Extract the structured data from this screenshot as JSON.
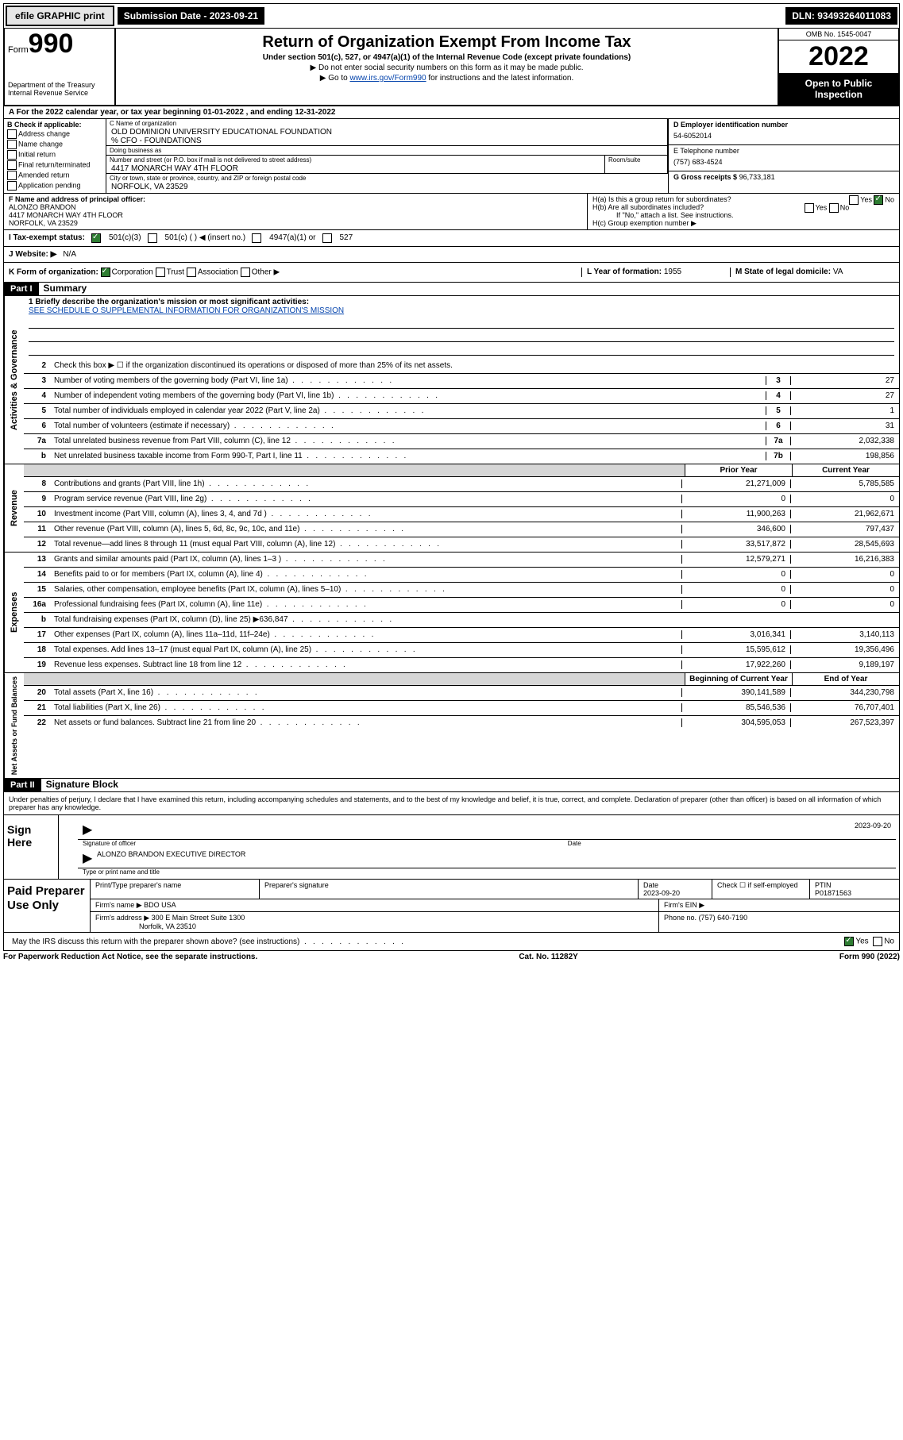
{
  "topbar": {
    "efile": "efile GRAPHIC print",
    "submission": "Submission Date - 2023-09-21",
    "dln": "DLN: 93493264011083"
  },
  "header": {
    "form_small": "Form",
    "form_big": "990",
    "title": "Return of Organization Exempt From Income Tax",
    "sub": "Under section 501(c), 527, or 4947(a)(1) of the Internal Revenue Code (except private foundations)",
    "note1": "▶ Do not enter social security numbers on this form as it may be made public.",
    "note2_pre": "▶ Go to ",
    "note2_link": "www.irs.gov/Form990",
    "note2_post": " for instructions and the latest information.",
    "dept": "Department of the Treasury\nInternal Revenue Service",
    "omb": "OMB No. 1545-0047",
    "year": "2022",
    "open": "Open to Public Inspection"
  },
  "lineA": "A For the 2022 calendar year, or tax year beginning 01-01-2022    , and ending 12-31-2022",
  "sectionB": {
    "label": "B Check if applicable:",
    "opts": [
      "Address change",
      "Name change",
      "Initial return",
      "Final return/terminated",
      "Amended return",
      "Application pending"
    ]
  },
  "sectionC": {
    "label_name": "C Name of organization",
    "name": "OLD DOMINION UNIVERSITY EDUCATIONAL FOUNDATION",
    "care_of": "% CFO - FOUNDATIONS",
    "dba_label": "Doing business as",
    "street_label": "Number and street (or P.O. box if mail is not delivered to street address)",
    "room_label": "Room/suite",
    "street": "4417 MONARCH WAY 4TH FLOOR",
    "city_label": "City or town, state or province, country, and ZIP or foreign postal code",
    "city": "NORFOLK, VA  23529"
  },
  "sectionD": {
    "label": "D Employer identification number",
    "ein": "54-6052014"
  },
  "sectionE": {
    "label": "E Telephone number",
    "phone": "(757) 683-4524"
  },
  "sectionG": {
    "label": "G Gross receipts $",
    "val": "96,733,181"
  },
  "sectionF": {
    "label": "F Name and address of principal officer:",
    "name": "ALONZO BRANDON",
    "addr1": "4417 MONARCH WAY 4TH FLOOR",
    "addr2": "NORFOLK, VA  23529"
  },
  "sectionH": {
    "ha": "H(a)  Is this a group return for subordinates?",
    "ha_yes": "Yes",
    "ha_no": "No",
    "hb": "H(b)  Are all subordinates included?",
    "hb_yes": "Yes",
    "hb_no": "No",
    "hb_note": "If \"No,\" attach a list. See instructions.",
    "hc": "H(c)  Group exemption number ▶"
  },
  "sectionI": {
    "label": "I   Tax-exempt status:",
    "c3": "501(c)(3)",
    "c": "501(c) (  ) ◀ (insert no.)",
    "a1": "4947(a)(1) or",
    "s527": "527"
  },
  "sectionJ": {
    "label": "J   Website: ▶",
    "val": "N/A"
  },
  "sectionK": {
    "label": "K Form of organization:",
    "corp": "Corporation",
    "trust": "Trust",
    "assoc": "Association",
    "other": "Other ▶",
    "l_label": "L Year of formation:",
    "l_val": "1955",
    "m_label": "M State of legal domicile:",
    "m_val": "VA"
  },
  "part1": {
    "header": "Part I",
    "title": "Summary",
    "side_gov": "Activities & Governance",
    "side_rev": "Revenue",
    "side_exp": "Expenses",
    "side_net": "Net Assets or Fund Balances",
    "l1_label": "1   Briefly describe the organization's mission or most significant activities:",
    "l1_link": "SEE SCHEDULE O SUPPLEMENTAL INFORMATION FOR ORGANIZATION'S MISSION",
    "l2": "Check this box ▶ ☐  if the organization discontinued its operations or disposed of more than 25% of its net assets.",
    "lines_gov": [
      {
        "n": "3",
        "d": "Number of voting members of the governing body (Part VI, line 1a)",
        "box": "3",
        "v": "27"
      },
      {
        "n": "4",
        "d": "Number of independent voting members of the governing body (Part VI, line 1b)",
        "box": "4",
        "v": "27"
      },
      {
        "n": "5",
        "d": "Total number of individuals employed in calendar year 2022 (Part V, line 2a)",
        "box": "5",
        "v": "1"
      },
      {
        "n": "6",
        "d": "Total number of volunteers (estimate if necessary)",
        "box": "6",
        "v": "31"
      },
      {
        "n": "7a",
        "d": "Total unrelated business revenue from Part VIII, column (C), line 12",
        "box": "7a",
        "v": "2,032,338"
      },
      {
        "n": "b",
        "d": "Net unrelated business taxable income from Form 990-T, Part I, line 11",
        "box": "7b",
        "v": "198,856"
      }
    ],
    "col_prior": "Prior Year",
    "col_curr": "Current Year",
    "lines_rev": [
      {
        "n": "8",
        "d": "Contributions and grants (Part VIII, line 1h)",
        "p": "21,271,009",
        "c": "5,785,585"
      },
      {
        "n": "9",
        "d": "Program service revenue (Part VIII, line 2g)",
        "p": "0",
        "c": "0"
      },
      {
        "n": "10",
        "d": "Investment income (Part VIII, column (A), lines 3, 4, and 7d )",
        "p": "11,900,263",
        "c": "21,962,671"
      },
      {
        "n": "11",
        "d": "Other revenue (Part VIII, column (A), lines 5, 6d, 8c, 9c, 10c, and 11e)",
        "p": "346,600",
        "c": "797,437"
      },
      {
        "n": "12",
        "d": "Total revenue—add lines 8 through 11 (must equal Part VIII, column (A), line 12)",
        "p": "33,517,872",
        "c": "28,545,693"
      }
    ],
    "lines_exp": [
      {
        "n": "13",
        "d": "Grants and similar amounts paid (Part IX, column (A), lines 1–3 )",
        "p": "12,579,271",
        "c": "16,216,383"
      },
      {
        "n": "14",
        "d": "Benefits paid to or for members (Part IX, column (A), line 4)",
        "p": "0",
        "c": "0"
      },
      {
        "n": "15",
        "d": "Salaries, other compensation, employee benefits (Part IX, column (A), lines 5–10)",
        "p": "0",
        "c": "0"
      },
      {
        "n": "16a",
        "d": "Professional fundraising fees (Part IX, column (A), line 11e)",
        "p": "0",
        "c": "0"
      },
      {
        "n": "b",
        "d": "Total fundraising expenses (Part IX, column (D), line 25) ▶636,847",
        "p": "",
        "c": "",
        "shade": true
      },
      {
        "n": "17",
        "d": "Other expenses (Part IX, column (A), lines 11a–11d, 11f–24e)",
        "p": "3,016,341",
        "c": "3,140,113"
      },
      {
        "n": "18",
        "d": "Total expenses. Add lines 13–17 (must equal Part IX, column (A), line 25)",
        "p": "15,595,612",
        "c": "19,356,496"
      },
      {
        "n": "19",
        "d": "Revenue less expenses. Subtract line 18 from line 12",
        "p": "17,922,260",
        "c": "9,189,197"
      }
    ],
    "col_beg": "Beginning of Current Year",
    "col_end": "End of Year",
    "lines_net": [
      {
        "n": "20",
        "d": "Total assets (Part X, line 16)",
        "p": "390,141,589",
        "c": "344,230,798"
      },
      {
        "n": "21",
        "d": "Total liabilities (Part X, line 26)",
        "p": "85,546,536",
        "c": "76,707,401"
      },
      {
        "n": "22",
        "d": "Net assets or fund balances. Subtract line 21 from line 20",
        "p": "304,595,053",
        "c": "267,523,397"
      }
    ]
  },
  "part2": {
    "header": "Part II",
    "title": "Signature Block",
    "decl": "Under penalties of perjury, I declare that I have examined this return, including accompanying schedules and statements, and to the best of my knowledge and belief, it is true, correct, and complete. Declaration of preparer (other than officer) is based on all information of which preparer has any knowledge.",
    "sign_here": "Sign Here",
    "sig_officer_label": "Signature of officer",
    "sig_date_label": "Date",
    "sig_date": "2023-09-20",
    "officer_name": "ALONZO BRANDON EXECUTIVE DIRECTOR",
    "officer_name_label": "Type or print name and title",
    "paid": "Paid Preparer Use Only",
    "prep_name_label": "Print/Type preparer's name",
    "prep_sig_label": "Preparer's signature",
    "prep_date_label": "Date",
    "prep_date": "2023-09-20",
    "prep_check_label": "Check ☐ if self-employed",
    "ptin_label": "PTIN",
    "ptin": "P01871563",
    "firm_name_label": "Firm's name    ▶",
    "firm_name": "BDO USA",
    "firm_ein_label": "Firm's EIN ▶",
    "firm_addr_label": "Firm's address ▶",
    "firm_addr1": "300 E Main Street Suite 1300",
    "firm_addr2": "Norfolk, VA  23510",
    "firm_phone_label": "Phone no.",
    "firm_phone": "(757) 640-7190",
    "discuss": "May the IRS discuss this return with the preparer shown above? (see instructions)",
    "discuss_yes": "Yes",
    "discuss_no": "No"
  },
  "footer": {
    "left": "For Paperwork Reduction Act Notice, see the separate instructions.",
    "mid": "Cat. No. 11282Y",
    "right": "Form 990 (2022)"
  }
}
